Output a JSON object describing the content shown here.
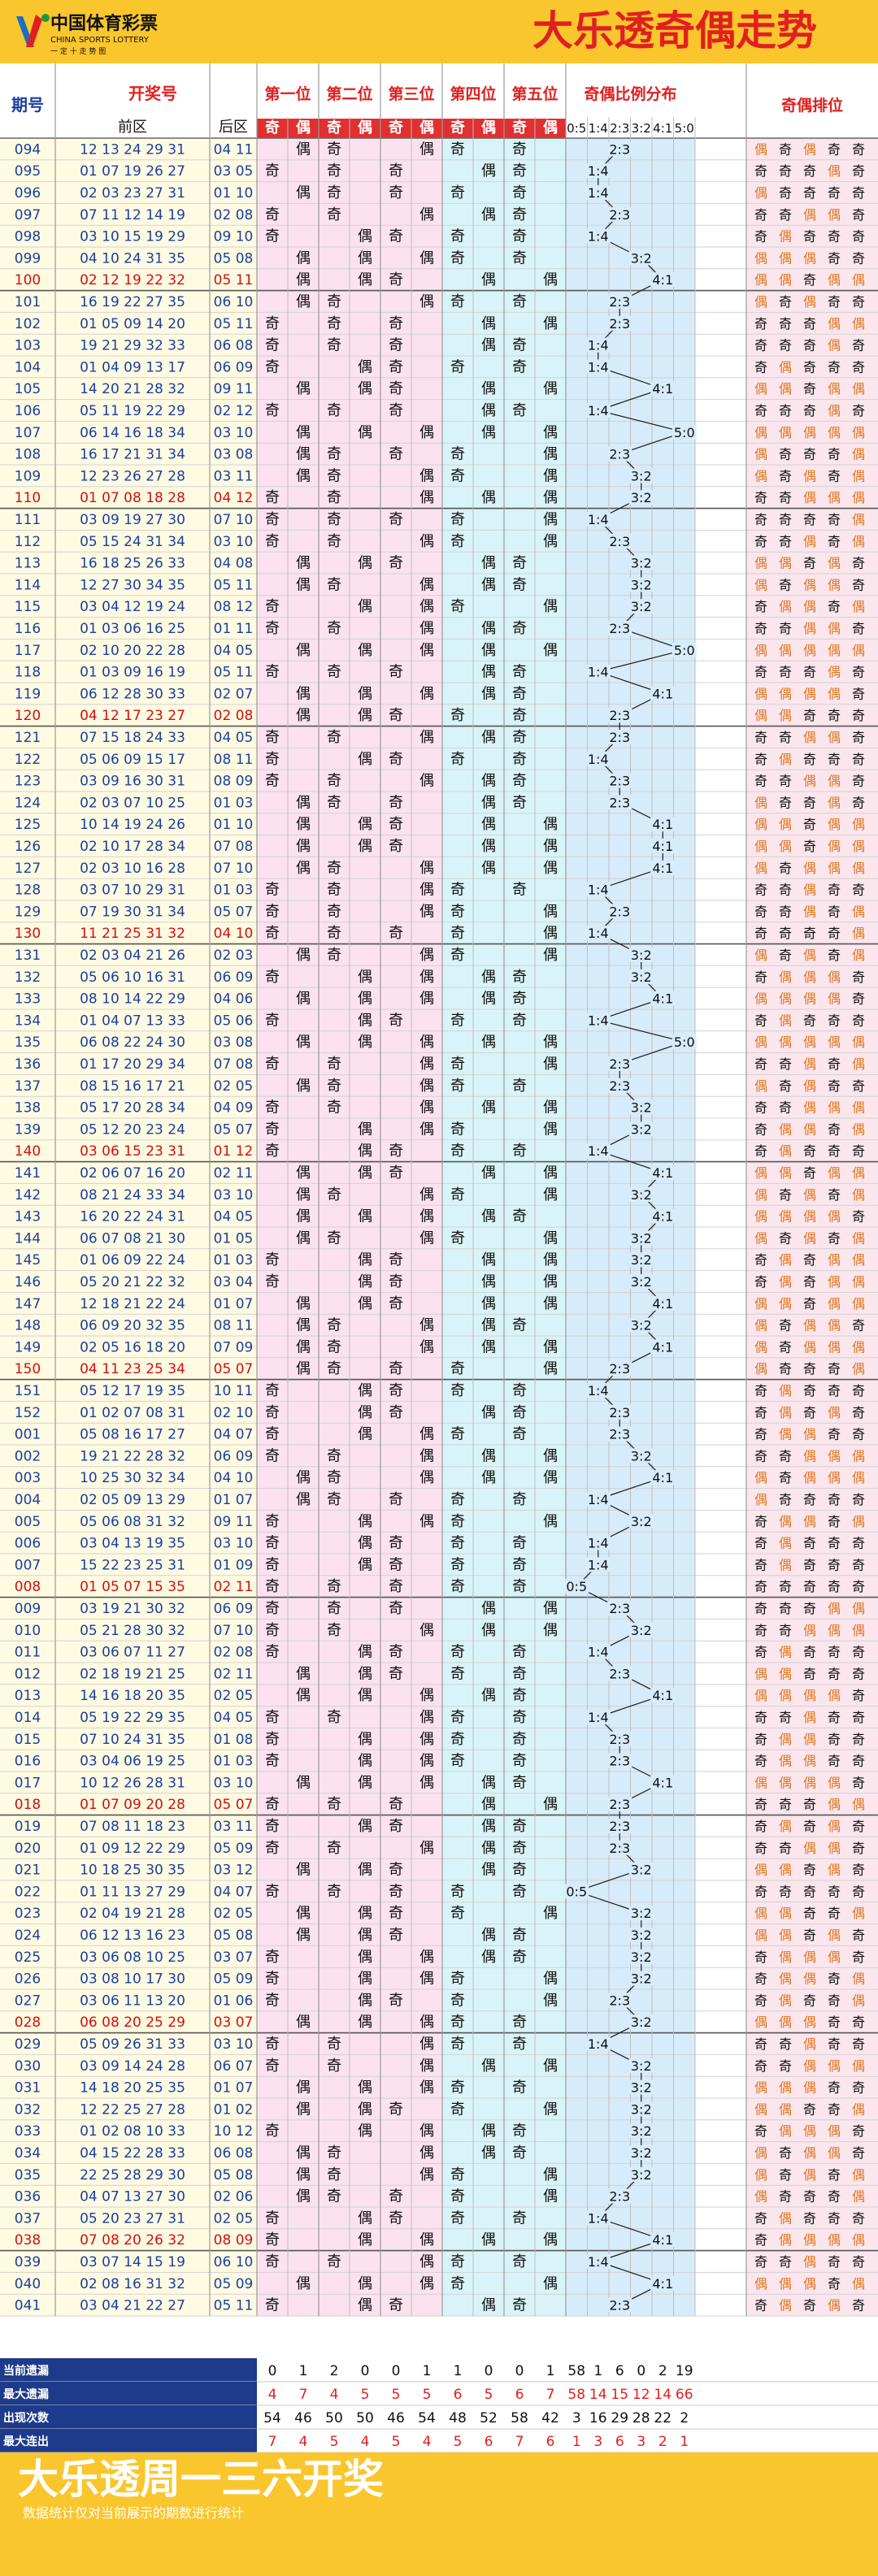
{
  "header": {
    "logo_cn": "中国体育彩票",
    "logo_en": "CHINA SPORTS LOTTERY",
    "logo_slogan": "一 定 十 走 势 图",
    "title": "大乐透奇偶走势"
  },
  "columns": {
    "issue": "期号",
    "draw": "开奖号",
    "front": "前区",
    "back": "后区",
    "positions": [
      "第一位",
      "第二位",
      "第三位",
      "第四位",
      "第五位"
    ],
    "odd": "奇",
    "even": "偶",
    "ratio_group": "奇偶比例分布",
    "ratios": [
      "0:5",
      "1:4",
      "2:3",
      "3:2",
      "4:1",
      "5:0"
    ],
    "pattern": "奇偶排位"
  },
  "colors": {
    "odd_text": "#1a1a1a",
    "even_text": "#1a1a1a",
    "header_red": "#e02020",
    "last_row_red": "#d01010",
    "pattern_even": "#e07820",
    "position_bg": [
      "#fbe2ee",
      "#fbe2ee",
      "#fbe2ee",
      "#d9f4f8",
      "#d9f4f8"
    ],
    "ratio_bg": "#d6ecfa"
  },
  "chart_data": {
    "type": "table",
    "rows": [
      [
        "094",
        "12 13 24 29 31",
        "04 11"
      ],
      [
        "095",
        "01 07 19 26 27",
        "03 05"
      ],
      [
        "096",
        "02 03 23 27 31",
        "01 10"
      ],
      [
        "097",
        "07 11 12 14 19",
        "02 08"
      ],
      [
        "098",
        "03 10 15 19 29",
        "09 10"
      ],
      [
        "099",
        "04 10 24 31 35",
        "05 08"
      ],
      [
        "100",
        "02 12 19 22 32",
        "05 11"
      ],
      [
        "101",
        "16 19 22 27 35",
        "06 10"
      ],
      [
        "102",
        "01 05 09 14 20",
        "05 11"
      ],
      [
        "103",
        "19 21 29 32 33",
        "06 08"
      ],
      [
        "104",
        "01 04 09 13 17",
        "06 09"
      ],
      [
        "105",
        "14 20 21 28 32",
        "09 11"
      ],
      [
        "106",
        "05 11 19 22 29",
        "02 12"
      ],
      [
        "107",
        "06 14 16 18 34",
        "03 10"
      ],
      [
        "108",
        "16 17 21 31 34",
        "03 08"
      ],
      [
        "109",
        "12 23 26 27 28",
        "03 11"
      ],
      [
        "110",
        "01 07 08 18 28",
        "04 12"
      ],
      [
        "111",
        "03 09 19 27 30",
        "07 10"
      ],
      [
        "112",
        "05 15 24 31 34",
        "03 10"
      ],
      [
        "113",
        "16 18 25 26 33",
        "04 08"
      ],
      [
        "114",
        "12 27 30 34 35",
        "05 11"
      ],
      [
        "115",
        "03 04 12 19 24",
        "08 12"
      ],
      [
        "116",
        "01 03 06 16 25",
        "01 11"
      ],
      [
        "117",
        "02 10 20 22 28",
        "04 05"
      ],
      [
        "118",
        "01 03 09 16 19",
        "05 11"
      ],
      [
        "119",
        "06 12 28 30 33",
        "02 07"
      ],
      [
        "120",
        "04 12 17 23 27",
        "02 08"
      ],
      [
        "121",
        "07 15 18 24 33",
        "04 05"
      ],
      [
        "122",
        "05 06 09 15 17",
        "08 11"
      ],
      [
        "123",
        "03 09 16 30 31",
        "08 09"
      ],
      [
        "124",
        "02 03 07 10 25",
        "01 03"
      ],
      [
        "125",
        "10 14 19 24 26",
        "01 10"
      ],
      [
        "126",
        "02 10 17 28 34",
        "07 08"
      ],
      [
        "127",
        "02 03 10 16 28",
        "07 10"
      ],
      [
        "128",
        "03 07 10 29 31",
        "01 03"
      ],
      [
        "129",
        "07 19 30 31 34",
        "05 07"
      ],
      [
        "130",
        "11 21 25 31 32",
        "04 10"
      ],
      [
        "131",
        "02 03 04 21 26",
        "02 03"
      ],
      [
        "132",
        "05 06 10 16 31",
        "06 09"
      ],
      [
        "133",
        "08 10 14 22 29",
        "04 06"
      ],
      [
        "134",
        "01 04 07 13 33",
        "05 06"
      ],
      [
        "135",
        "06 08 22 24 30",
        "03 08"
      ],
      [
        "136",
        "01 17 20 29 34",
        "07 08"
      ],
      [
        "137",
        "08 15 16 17 21",
        "02 05"
      ],
      [
        "138",
        "05 17 20 28 34",
        "04 09"
      ],
      [
        "139",
        "05 12 20 23 24",
        "05 07"
      ],
      [
        "140",
        "03 06 15 23 31",
        "01 12"
      ],
      [
        "141",
        "02 06 07 16 20",
        "02 11"
      ],
      [
        "142",
        "08 21 24 33 34",
        "03 10"
      ],
      [
        "143",
        "16 20 22 24 31",
        "04 05"
      ],
      [
        "144",
        "06 07 08 21 30",
        "01 05"
      ],
      [
        "145",
        "01 06 09 22 24",
        "01 03"
      ],
      [
        "146",
        "05 20 21 22 32",
        "03 04"
      ],
      [
        "147",
        "12 18 21 22 24",
        "01 07"
      ],
      [
        "148",
        "06 09 20 32 35",
        "08 11"
      ],
      [
        "149",
        "02 05 16 18 20",
        "07 09"
      ],
      [
        "150",
        "04 11 23 25 34",
        "05 07"
      ],
      [
        "151",
        "05 12 17 19 35",
        "10 11"
      ],
      [
        "152",
        "01 02 07 08 31",
        "02 10"
      ],
      [
        "001",
        "05 08 16 17 27",
        "04 07"
      ],
      [
        "002",
        "19 21 22 28 32",
        "06 09"
      ],
      [
        "003",
        "10 25 30 32 34",
        "04 10"
      ],
      [
        "004",
        "02 05 09 13 29",
        "01 07"
      ],
      [
        "005",
        "05 06 08 31 32",
        "09 11"
      ],
      [
        "006",
        "03 04 13 19 35",
        "03 10"
      ],
      [
        "007",
        "15 22 23 25 31",
        "01 09"
      ],
      [
        "008",
        "01 05 07 15 35",
        "02 11"
      ],
      [
        "009",
        "03 19 21 30 32",
        "06 09"
      ],
      [
        "010",
        "05 21 28 30 32",
        "07 10"
      ],
      [
        "011",
        "03 06 07 11 27",
        "02 08"
      ],
      [
        "012",
        "02 18 19 21 25",
        "02 11"
      ],
      [
        "013",
        "14 16 18 20 35",
        "02 05"
      ],
      [
        "014",
        "05 19 22 29 35",
        "04 05"
      ],
      [
        "015",
        "07 10 24 31 35",
        "01 08"
      ],
      [
        "016",
        "03 04 06 19 25",
        "01 03"
      ],
      [
        "017",
        "10 12 26 28 31",
        "03 10"
      ],
      [
        "018",
        "01 07 09 20 28",
        "05 07"
      ],
      [
        "019",
        "07 08 11 18 23",
        "03 11"
      ],
      [
        "020",
        "01 09 12 22 29",
        "05 09"
      ],
      [
        "021",
        "10 18 25 30 35",
        "03 12"
      ],
      [
        "022",
        "01 11 13 27 29",
        "04 07"
      ],
      [
        "023",
        "02 04 19 21 28",
        "02 05"
      ],
      [
        "024",
        "06 12 13 16 23",
        "05 08"
      ],
      [
        "025",
        "03 06 08 10 25",
        "03 07"
      ],
      [
        "026",
        "03 08 10 17 30",
        "05 09"
      ],
      [
        "027",
        "03 06 11 13 20",
        "01 06"
      ],
      [
        "028",
        "06 08 20 25 29",
        "03 07"
      ],
      [
        "029",
        "05 09 26 31 33",
        "03 10"
      ],
      [
        "030",
        "03 09 14 24 28",
        "06 07"
      ],
      [
        "031",
        "14 18 20 25 35",
        "01 07"
      ],
      [
        "032",
        "12 22 25 27 28",
        "01 02"
      ],
      [
        "033",
        "01 02 08 10 33",
        "10 12"
      ],
      [
        "034",
        "04 15 22 28 33",
        "06 08"
      ],
      [
        "035",
        "22 25 28 29 30",
        "05 08"
      ],
      [
        "036",
        "04 07 13 27 30",
        "02 06"
      ],
      [
        "037",
        "05 20 23 27 31",
        "02 05"
      ],
      [
        "038",
        "07 08 20 26 32",
        "08 09"
      ],
      [
        "039",
        "03 07 14 15 19",
        "06 10"
      ],
      [
        "040",
        "02 08 16 31 32",
        "05 09"
      ],
      [
        "041",
        "03 04 21 22 27",
        "05 11"
      ]
    ],
    "stats": [
      {
        "label": "当前遗漏",
        "values": [
          "0",
          "1",
          "2",
          "0",
          "0",
          "1",
          "1",
          "0",
          "0",
          "1",
          "58",
          "1",
          "6",
          "0",
          "2",
          "19"
        ]
      },
      {
        "label": "最大遗漏",
        "values": [
          "4",
          "7",
          "4",
          "5",
          "5",
          "5",
          "6",
          "5",
          "6",
          "7",
          "58",
          "14",
          "15",
          "12",
          "14",
          "66"
        ]
      },
      {
        "label": "出现次数",
        "values": [
          "54",
          "46",
          "50",
          "50",
          "46",
          "54",
          "48",
          "52",
          "58",
          "42",
          "3",
          "16",
          "29",
          "28",
          "22",
          "2"
        ]
      },
      {
        "label": "最大连出",
        "values": [
          "7",
          "4",
          "5",
          "4",
          "5",
          "4",
          "5",
          "6",
          "7",
          "6",
          "1",
          "3",
          "6",
          "3",
          "2",
          "1"
        ]
      }
    ]
  },
  "footer": {
    "title": "大乐透周一三六开奖",
    "note": "数据统计仅对当前展示的期数进行统计"
  }
}
